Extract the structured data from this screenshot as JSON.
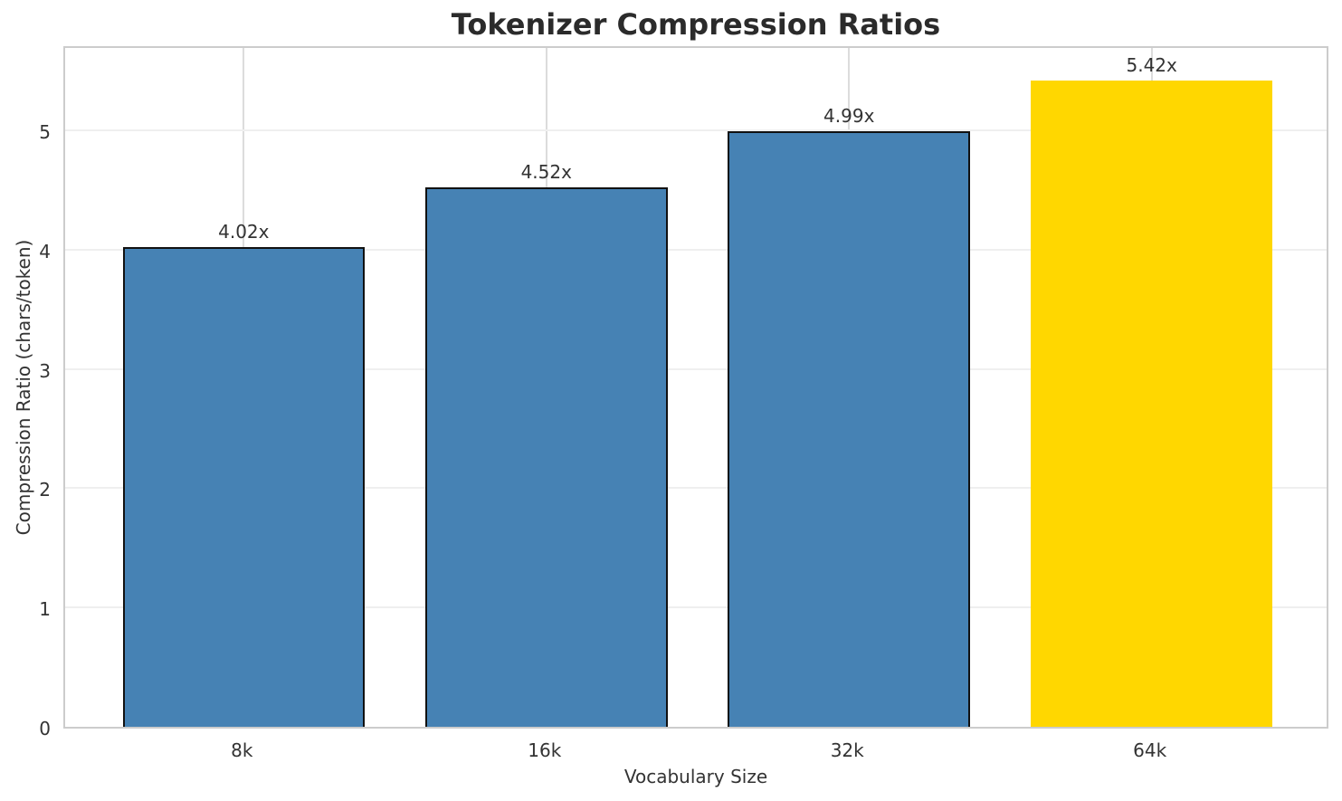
{
  "chart_data": {
    "type": "bar",
    "title": "Tokenizer Compression Ratios",
    "xlabel": "Vocabulary Size",
    "ylabel": "Compression Ratio (chars/token)",
    "categories": [
      "8k",
      "16k",
      "32k",
      "64k"
    ],
    "values": [
      4.02,
      4.52,
      4.99,
      5.42
    ],
    "value_labels": [
      "4.02x",
      "4.52x",
      "4.99x",
      "5.42x"
    ],
    "bar_colors": [
      "#4682B4",
      "#4682B4",
      "#4682B4",
      "#FFD700"
    ],
    "bar_edge_widths": [
      2,
      2,
      2,
      0
    ],
    "highlighted_category": "64k",
    "yticks": [
      0,
      1,
      2,
      3,
      4,
      5
    ],
    "ylim": [
      0,
      5.72
    ],
    "xlim": [
      -0.59,
      3.59
    ],
    "bar_width": 0.8,
    "grid": true,
    "legend_position": "none",
    "colors": {
      "bar_default": "#4682B4",
      "bar_highlight": "#FFD700",
      "bar_edge": "#111111",
      "grid_horizontal": "#efefef",
      "grid_vertical": "#dcdcdc",
      "spine": "#cccccc",
      "tick_text": "#333333",
      "title_text": "#2b2b2b",
      "background": "#ffffff"
    }
  }
}
